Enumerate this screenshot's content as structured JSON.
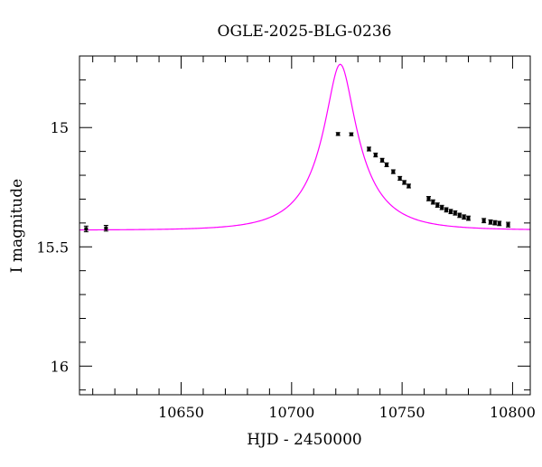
{
  "chart_data": {
    "type": "scatter",
    "title": "OGLE-2025-BLG-0236",
    "xlabel": "HJD - 2450000",
    "ylabel": "I magnitude",
    "xlim": [
      10604,
      10808
    ],
    "ylim": [
      16.12,
      14.7
    ],
    "y_inverted": true,
    "grid": false,
    "x_major_ticks": [
      10650,
      10700,
      10750,
      10800
    ],
    "x_tick_labels": [
      "10650",
      "10700",
      "10750",
      "10800"
    ],
    "x_minor_step": 10,
    "y_major_ticks": [
      15,
      15.5,
      16
    ],
    "y_tick_labels": [
      "15",
      "15.5",
      "16"
    ],
    "y_minor_step": 0.1,
    "colors": {
      "model": "#ff00ff",
      "points": "#000000"
    },
    "model": {
      "t0": 10722,
      "u0": 0.25,
      "tE": 24,
      "fs": 0.29,
      "base_mag": 15.43
    },
    "series": [
      {
        "x": [
          10607,
          10616,
          10721,
          10727,
          10735,
          10738,
          10741,
          10743,
          10746,
          10749,
          10751,
          10753,
          10762,
          10764,
          10766,
          10768,
          10770,
          10772,
          10774,
          10776,
          10778,
          10780,
          10787,
          10790,
          10792,
          10794,
          10798
        ],
        "y": [
          15.425,
          15.422,
          15.027,
          15.028,
          15.09,
          15.115,
          15.137,
          15.156,
          15.185,
          15.213,
          15.23,
          15.245,
          15.298,
          15.312,
          15.325,
          15.335,
          15.345,
          15.352,
          15.358,
          15.368,
          15.375,
          15.38,
          15.39,
          15.396,
          15.399,
          15.402,
          15.407
        ],
        "err": [
          0.012,
          0.012,
          0.006,
          0.006,
          0.008,
          0.008,
          0.008,
          0.008,
          0.008,
          0.008,
          0.008,
          0.008,
          0.009,
          0.009,
          0.009,
          0.009,
          0.009,
          0.009,
          0.009,
          0.009,
          0.009,
          0.009,
          0.009,
          0.009,
          0.009,
          0.009,
          0.01
        ]
      }
    ]
  }
}
